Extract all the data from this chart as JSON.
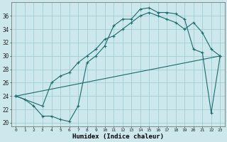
{
  "xlabel": "Humidex (Indice chaleur)",
  "bg_color": "#cce8ec",
  "grid_color": "#9fcdd4",
  "line_color": "#1a6b6b",
  "xlim": [
    -0.5,
    23.5
  ],
  "ylim": [
    19.5,
    38
  ],
  "yticks": [
    20,
    22,
    24,
    26,
    28,
    30,
    32,
    34,
    36
  ],
  "xticks": [
    0,
    1,
    2,
    3,
    4,
    5,
    6,
    7,
    8,
    9,
    10,
    11,
    12,
    13,
    14,
    15,
    16,
    17,
    18,
    19,
    20,
    21,
    22,
    23
  ],
  "line1_x": [
    0,
    1,
    2,
    3,
    4,
    5,
    6,
    7,
    8,
    9,
    10,
    11,
    12,
    13,
    14,
    15,
    16,
    17,
    18,
    19,
    20,
    21,
    22,
    23
  ],
  "line1_y": [
    24,
    23.5,
    22.5,
    21.0,
    21.0,
    20.5,
    20.2,
    22.5,
    29.0,
    30.0,
    31.5,
    34.5,
    35.5,
    35.5,
    37.0,
    37.2,
    36.5,
    36.5,
    36.3,
    35.5,
    31.0,
    30.5,
    21.5,
    30.0
  ],
  "line2_x": [
    0,
    3,
    4,
    5,
    6,
    7,
    8,
    9,
    10,
    11,
    12,
    13,
    14,
    15,
    16,
    17,
    18,
    19,
    20,
    21,
    22,
    23
  ],
  "line2_y": [
    24,
    22.5,
    26.0,
    27.0,
    27.5,
    29.0,
    30.0,
    31.0,
    32.5,
    33.0,
    34.0,
    35.0,
    36.0,
    36.5,
    36.0,
    35.5,
    35.0,
    34.0,
    35.0,
    33.5,
    31.0,
    30.0
  ],
  "line3_x": [
    0,
    23
  ],
  "line3_y": [
    24,
    30
  ]
}
